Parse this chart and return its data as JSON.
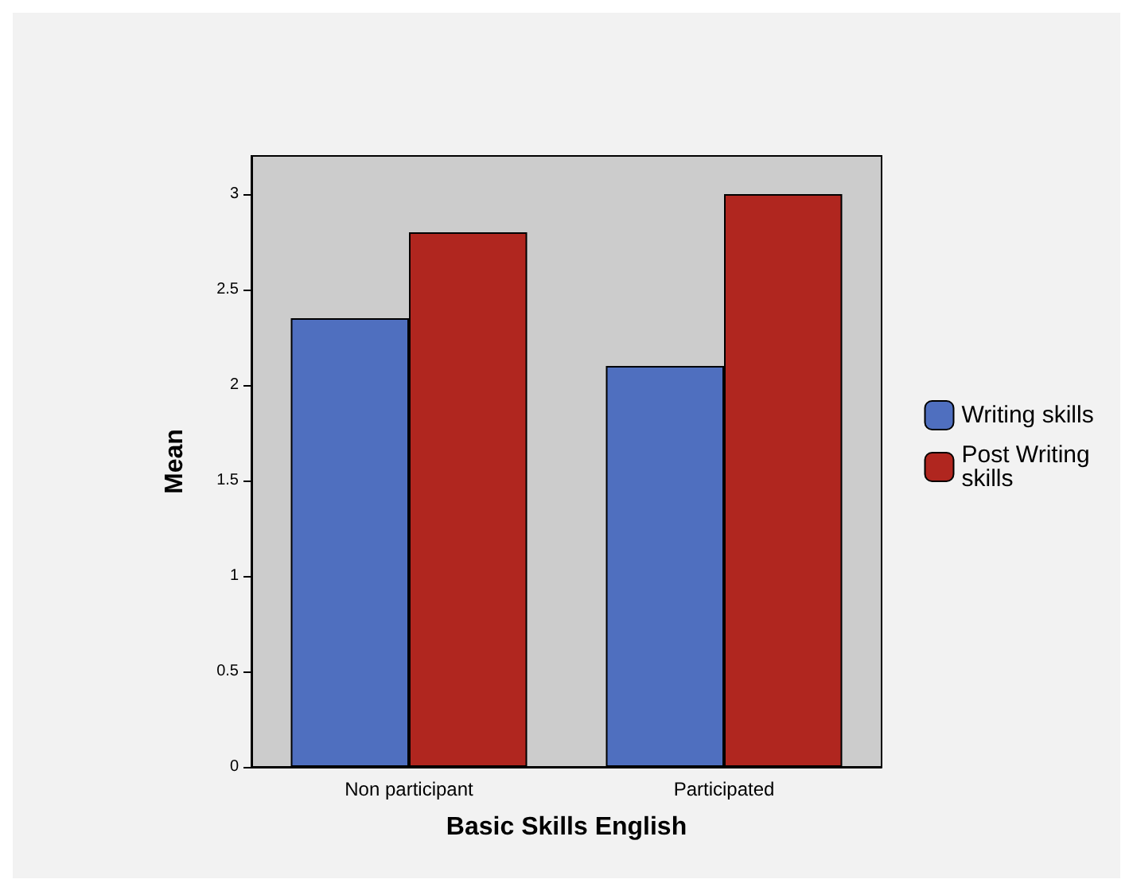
{
  "chart_data": {
    "type": "bar",
    "xlabel": "Basic Skills English",
    "ylabel": "Mean",
    "categories": [
      "Non participant",
      "Participated"
    ],
    "series": [
      {
        "name": "Writing skills",
        "color": "#4f6fbf",
        "values": [
          2.35,
          2.1
        ]
      },
      {
        "name": "Post Writing skills",
        "color": "#b0261f",
        "values": [
          2.8,
          3.0
        ]
      }
    ],
    "ylim": [
      0,
      3.2
    ],
    "yticks": [
      0,
      0.5,
      1,
      1.5,
      2,
      2.5,
      3
    ],
    "grid": false,
    "legend": "right"
  }
}
